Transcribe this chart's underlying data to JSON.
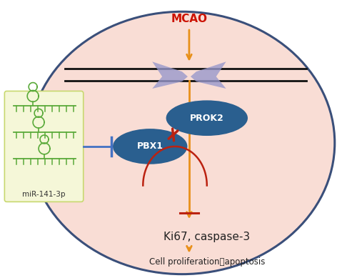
{
  "fig_width": 5.0,
  "fig_height": 3.89,
  "dpi": 100,
  "bg_color": "#ffffff",
  "cell_color_light": "#f9ddd5",
  "cell_color_dark": "#f0b8a8",
  "cell_edge_color": "#3a4f7a",
  "mir_box_color": "#f5f7d8",
  "mir_box_edge": "#c8d870",
  "mir_green": "#5aaa3a",
  "mir_text": "miR-141-3p",
  "mir_text_color": "#333333",
  "mcao_text": "MCAO",
  "mcao_color": "#cc1100",
  "prok2_color": "#2a5f8f",
  "prok2_text": "PROK2",
  "pbx1_color": "#2a5f8f",
  "pbx1_text": "PBX1",
  "ki67_text": "Ki67, caspase-3",
  "ki67_color": "#222222",
  "cell_prolif_text": "Cell proliferation、apoptosis",
  "cell_prolif_color": "#222222",
  "orange_color": "#e8901a",
  "red_color": "#bb2211",
  "blue_color": "#4472c4",
  "membrane_color": "#111111",
  "receptor_color": "#9999cc"
}
